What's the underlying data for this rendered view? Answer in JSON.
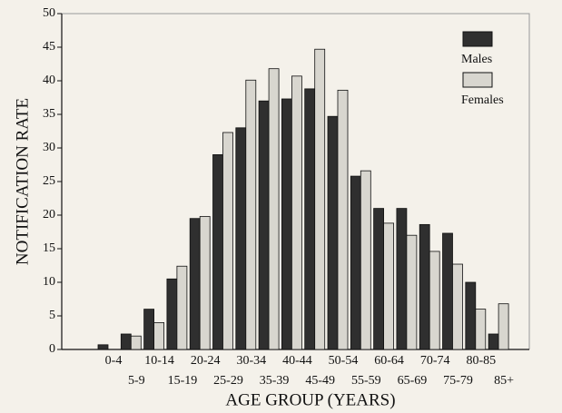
{
  "chart_data": {
    "type": "bar",
    "x_label": "AGE GROUP (YEARS)",
    "y_label": "NOTIFICATION RATE",
    "categories": [
      "0-4",
      "5-9",
      "10-14",
      "15-19",
      "20-24",
      "25-29",
      "30-34",
      "35-39",
      "40-44",
      "45-49",
      "50-54",
      "55-59",
      "60-64",
      "65-69",
      "70-74",
      "75-79",
      "80-85",
      "85+"
    ],
    "series": [
      {
        "name": "Males",
        "color": "#2f2f2f",
        "values": [
          0.7,
          2.3,
          6,
          10.5,
          19.5,
          29,
          33,
          37,
          37.3,
          38.8,
          34.7,
          25.8,
          21,
          21,
          18.6,
          17.3,
          10,
          2.3
        ]
      },
      {
        "name": "Females",
        "color": "#d8d6cf",
        "values": [
          0,
          2,
          4,
          12.4,
          19.8,
          32.3,
          40.1,
          41.8,
          40.7,
          44.7,
          38.6,
          26.6,
          18.8,
          17,
          14.6,
          12.7,
          6,
          6.8
        ]
      }
    ],
    "ylim": [
      0,
      50
    ],
    "yticks": [
      0,
      5,
      10,
      15,
      20,
      25,
      30,
      35,
      40,
      45,
      50
    ]
  }
}
